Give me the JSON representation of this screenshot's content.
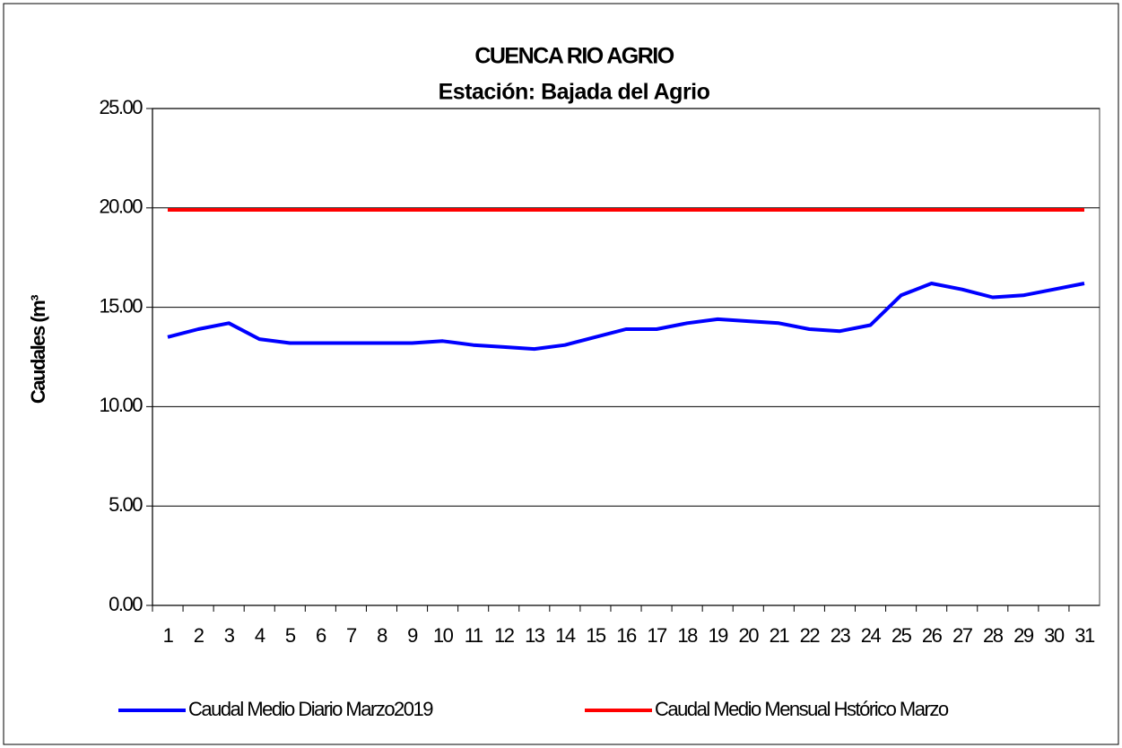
{
  "chart_data": {
    "type": "line",
    "title": "CUENCA RIO AGRIO",
    "subtitle": "Estación: Bajada del Agrio",
    "y_label": "Caudales (m³",
    "categories": [
      "1",
      "2",
      "3",
      "4",
      "5",
      "6",
      "7",
      "8",
      "9",
      "10",
      "11",
      "12",
      "13",
      "14",
      "15",
      "16",
      "17",
      "18",
      "19",
      "20",
      "21",
      "22",
      "23",
      "24",
      "25",
      "26",
      "27",
      "28",
      "29",
      "30",
      "31"
    ],
    "series": [
      {
        "name": "Caudal Medio Diario Marzo2019",
        "color": "#0000ff",
        "values": [
          13.5,
          13.9,
          14.2,
          13.4,
          13.2,
          13.2,
          13.2,
          13.2,
          13.2,
          13.3,
          13.1,
          13.0,
          12.9,
          13.1,
          13.5,
          13.9,
          13.9,
          14.2,
          14.4,
          14.3,
          14.2,
          13.9,
          13.8,
          14.1,
          15.6,
          16.2,
          15.9,
          15.5,
          15.6,
          15.9,
          16.2
        ]
      },
      {
        "name": "Caudal Medio Mensual Hstórico Marzo",
        "color": "#ff0000",
        "values": [
          19.9,
          19.9,
          19.9,
          19.9,
          19.9,
          19.9,
          19.9,
          19.9,
          19.9,
          19.9,
          19.9,
          19.9,
          19.9,
          19.9,
          19.9,
          19.9,
          19.9,
          19.9,
          19.9,
          19.9,
          19.9,
          19.9,
          19.9,
          19.9,
          19.9,
          19.9,
          19.9,
          19.9,
          19.9,
          19.9,
          19.9
        ]
      }
    ],
    "ylim": [
      0,
      25
    ],
    "yticks": [
      {
        "value": 0,
        "label": "0.00"
      },
      {
        "value": 5,
        "label": "5.00"
      },
      {
        "value": 10,
        "label": "10.00"
      },
      {
        "value": 15,
        "label": "15.00"
      },
      {
        "value": 20,
        "label": "20.00"
      },
      {
        "value": 25,
        "label": "25.00"
      }
    ],
    "grid": true,
    "legend": "bottom"
  }
}
